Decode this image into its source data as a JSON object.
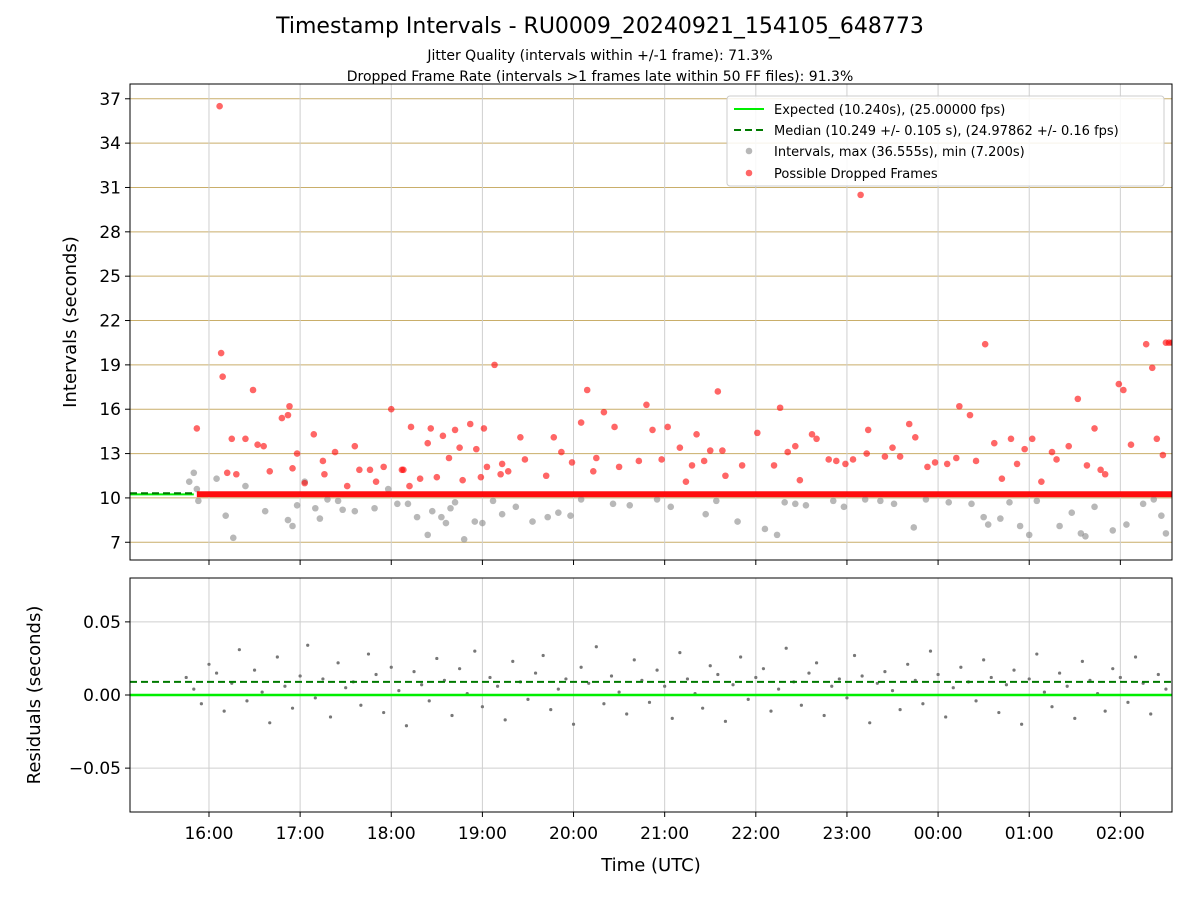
{
  "figure": {
    "title": "Timestamp Intervals - RU0009_20240921_154105_648773",
    "subtitle_jitter": "Jitter Quality (intervals within +/-1 frame): 71.3%",
    "subtitle_dropped": "Dropped Frame Rate (intervals >1 frames late within 50 FF files): 91.3%"
  },
  "chart_data": [
    {
      "type": "scatter",
      "ylabel": "Intervals (seconds)",
      "ylim": [
        5.8,
        38.0
      ],
      "yticks": [
        7,
        10,
        13,
        16,
        19,
        22,
        25,
        28,
        31,
        34,
        37
      ],
      "xlim": [
        "15:08",
        "02:34"
      ],
      "grid": true,
      "legend_position": "top-right",
      "reference_lines": [
        {
          "label": "Expected (10.240s), (25.00000 fps)",
          "value": 10.24,
          "style": "solid",
          "color": "#00ee00"
        },
        {
          "label": "Median (10.249 +/- 0.105 s), (24.97862 +/- 0.16 fps)",
          "value": 10.249,
          "style": "dashed",
          "color": "#007a00"
        }
      ],
      "series": [
        {
          "name": "Intervals, max (36.555s), min (7.200s)",
          "color": "#888888",
          "x": [
            "15:47",
            "15:50",
            "15:52",
            "15:53",
            "16:05",
            "16:11",
            "16:16",
            "16:24",
            "16:37",
            "16:52",
            "16:55",
            "16:58",
            "17:03",
            "17:10",
            "17:13",
            "17:18",
            "17:25",
            "17:28",
            "17:36",
            "17:49",
            "17:58",
            "18:04",
            "18:11",
            "18:17",
            "18:24",
            "18:27",
            "18:33",
            "18:36",
            "18:39",
            "18:42",
            "18:48",
            "18:55",
            "19:00",
            "19:07",
            "19:13",
            "19:22",
            "19:33",
            "19:43",
            "19:50",
            "19:58",
            "20:05",
            "20:26",
            "20:37",
            "20:55",
            "21:04",
            "21:27",
            "21:34",
            "21:48",
            "22:06",
            "22:14",
            "22:19",
            "22:26",
            "22:33",
            "22:51",
            "22:58",
            "23:12",
            "23:22",
            "23:31",
            "23:44",
            "23:52",
            "00:07",
            "00:22",
            "00:30",
            "00:33",
            "00:41",
            "00:47",
            "00:54",
            "01:00",
            "01:05",
            "01:20",
            "01:28",
            "01:34",
            "01:37",
            "01:43",
            "01:55",
            "02:04",
            "02:15",
            "02:22",
            "02:27",
            "02:30"
          ],
          "y": [
            11.1,
            11.7,
            10.6,
            9.8,
            11.3,
            8.8,
            7.3,
            10.8,
            9.1,
            8.5,
            8.1,
            9.5,
            11.1,
            9.3,
            8.6,
            9.9,
            9.8,
            9.2,
            9.1,
            9.3,
            10.6,
            9.6,
            9.6,
            8.7,
            7.5,
            9.1,
            8.7,
            8.3,
            9.3,
            9.7,
            7.2,
            8.4,
            8.3,
            9.8,
            8.9,
            9.4,
            8.4,
            8.7,
            9.0,
            8.8,
            9.9,
            9.6,
            9.5,
            9.9,
            9.4,
            8.9,
            9.8,
            8.4,
            7.9,
            7.5,
            9.7,
            9.6,
            9.5,
            9.8,
            9.4,
            9.9,
            9.8,
            9.6,
            8.0,
            9.9,
            9.7,
            9.6,
            8.7,
            8.2,
            8.6,
            9.7,
            8.1,
            7.5,
            9.8,
            8.1,
            9.0,
            7.6,
            7.4,
            9.4,
            7.8,
            8.2,
            9.6,
            9.9,
            8.8,
            7.6
          ]
        },
        {
          "name": "Possible Dropped Frames",
          "color": "#ff0000",
          "x": [
            "15:52",
            "16:07",
            "16:08",
            "16:09",
            "16:12",
            "16:15",
            "16:18",
            "16:24",
            "16:29",
            "16:32",
            "16:36",
            "16:40",
            "16:48",
            "16:52",
            "16:53",
            "16:55",
            "16:58",
            "17:03",
            "17:09",
            "17:15",
            "17:16",
            "17:23",
            "17:31",
            "17:36",
            "17:39",
            "17:46",
            "17:50",
            "17:55",
            "18:00",
            "18:07",
            "18:08",
            "18:12",
            "18:13",
            "18:19",
            "18:24",
            "18:26",
            "18:30",
            "18:34",
            "18:38",
            "18:42",
            "18:45",
            "18:47",
            "18:52",
            "18:56",
            "18:59",
            "19:01",
            "19:03",
            "19:08",
            "19:12",
            "19:13",
            "19:17",
            "19:25",
            "19:28",
            "19:42",
            "19:47",
            "19:52",
            "19:59",
            "20:05",
            "20:09",
            "20:13",
            "20:15",
            "20:20",
            "20:27",
            "20:30",
            "20:43",
            "20:48",
            "20:52",
            "20:58",
            "21:02",
            "21:10",
            "21:14",
            "21:18",
            "21:21",
            "21:26",
            "21:30",
            "21:35",
            "21:38",
            "21:40",
            "21:51",
            "22:01",
            "22:12",
            "22:16",
            "22:21",
            "22:26",
            "22:29",
            "22:37",
            "22:40",
            "22:48",
            "22:53",
            "22:59",
            "23:04",
            "23:09",
            "23:13",
            "23:14",
            "23:25",
            "23:30",
            "23:35",
            "23:41",
            "23:45",
            "23:53",
            "23:58",
            "00:06",
            "00:12",
            "00:14",
            "00:21",
            "00:25",
            "00:31",
            "00:37",
            "00:42",
            "00:48",
            "00:52",
            "00:57",
            "01:02",
            "01:08",
            "01:15",
            "01:18",
            "01:26",
            "01:32",
            "01:38",
            "01:43",
            "01:47",
            "01:50",
            "01:59",
            "02:02",
            "02:07",
            "02:17",
            "02:21",
            "02:24",
            "02:28",
            "02:30",
            "02:32",
            "02:34"
          ],
          "y": [
            14.7,
            36.5,
            19.8,
            18.2,
            11.7,
            14.0,
            11.6,
            14.0,
            17.3,
            13.6,
            13.5,
            11.8,
            15.4,
            15.6,
            16.2,
            12.0,
            13.0,
            11.0,
            14.3,
            12.5,
            11.6,
            13.1,
            10.8,
            13.5,
            11.9,
            11.9,
            11.1,
            12.1,
            16.0,
            11.9,
            11.9,
            10.8,
            14.8,
            11.3,
            13.7,
            14.7,
            11.4,
            14.2,
            12.7,
            14.6,
            13.4,
            11.2,
            15.0,
            13.3,
            11.4,
            14.7,
            12.1,
            19.0,
            11.6,
            12.3,
            11.8,
            14.1,
            12.6,
            11.5,
            14.1,
            13.1,
            12.4,
            15.1,
            17.3,
            11.8,
            12.7,
            15.8,
            14.8,
            12.1,
            12.5,
            16.3,
            14.6,
            12.6,
            14.8,
            13.4,
            11.1,
            12.2,
            14.3,
            12.5,
            13.2,
            17.2,
            13.2,
            11.5,
            12.2,
            14.4,
            12.2,
            16.1,
            13.1,
            13.5,
            11.2,
            14.3,
            14.0,
            12.6,
            12.5,
            12.3,
            12.6,
            30.5,
            13.0,
            14.6,
            12.8,
            13.4,
            12.8,
            15.0,
            14.1,
            12.1,
            12.4,
            12.3,
            12.7,
            16.2,
            15.6,
            12.5,
            20.4,
            13.7,
            11.3,
            14.0,
            12.3,
            13.3,
            14.0,
            11.1,
            13.1,
            12.6,
            13.5,
            16.7,
            12.2,
            14.7,
            11.9,
            11.6,
            17.7,
            17.3,
            13.6,
            20.4,
            18.8,
            14.0,
            12.9,
            20.5,
            20.5,
            20.5
          ]
        }
      ]
    },
    {
      "type": "scatter",
      "ylabel": "Residuals (seconds)",
      "xlabel": "Time (UTC)",
      "ylim": [
        -0.08,
        0.08
      ],
      "yticks": [
        -0.05,
        0.0,
        0.05
      ],
      "ytick_labels": [
        "−0.05",
        "0.00",
        "0.05"
      ],
      "xlim": [
        "15:08",
        "02:34"
      ],
      "xtick_labels": [
        "16:00",
        "17:00",
        "18:00",
        "19:00",
        "20:00",
        "21:00",
        "22:00",
        "23:00",
        "00:00",
        "01:00",
        "02:00"
      ],
      "grid": true,
      "reference_lines": [
        {
          "value": 0.0,
          "style": "solid",
          "color": "#00ee00"
        },
        {
          "value": 0.009,
          "style": "dashed",
          "color": "#007a00"
        }
      ],
      "series": [
        {
          "color": "#777777",
          "x": [
            "15:45",
            "15:50",
            "15:55",
            "16:00",
            "16:05",
            "16:10",
            "16:15",
            "16:20",
            "16:25",
            "16:30",
            "16:35",
            "16:40",
            "16:45",
            "16:50",
            "16:55",
            "17:00",
            "17:05",
            "17:10",
            "17:15",
            "17:20",
            "17:25",
            "17:30",
            "17:35",
            "17:40",
            "17:45",
            "17:50",
            "17:55",
            "18:00",
            "18:05",
            "18:10",
            "18:15",
            "18:20",
            "18:25",
            "18:30",
            "18:35",
            "18:40",
            "18:45",
            "18:50",
            "18:55",
            "19:00",
            "19:05",
            "19:10",
            "19:15",
            "19:20",
            "19:25",
            "19:30",
            "19:35",
            "19:40",
            "19:45",
            "19:50",
            "19:55",
            "20:00",
            "20:05",
            "20:10",
            "20:15",
            "20:20",
            "20:25",
            "20:30",
            "20:35",
            "20:40",
            "20:45",
            "20:50",
            "20:55",
            "21:00",
            "21:05",
            "21:10",
            "21:15",
            "21:20",
            "21:25",
            "21:30",
            "21:35",
            "21:40",
            "21:45",
            "21:50",
            "21:55",
            "22:00",
            "22:05",
            "22:10",
            "22:15",
            "22:20",
            "22:25",
            "22:30",
            "22:35",
            "22:40",
            "22:45",
            "22:50",
            "22:55",
            "23:00",
            "23:05",
            "23:10",
            "23:15",
            "23:20",
            "23:25",
            "23:30",
            "23:35",
            "23:40",
            "23:45",
            "23:50",
            "23:55",
            "00:00",
            "00:05",
            "00:10",
            "00:15",
            "00:20",
            "00:25",
            "00:30",
            "00:35",
            "00:40",
            "00:45",
            "00:50",
            "00:55",
            "01:00",
            "01:05",
            "01:10",
            "01:15",
            "01:20",
            "01:25",
            "01:30",
            "01:35",
            "01:40",
            "01:45",
            "01:50",
            "01:55",
            "02:00",
            "02:05",
            "02:10",
            "02:15",
            "02:20",
            "02:25",
            "02:30"
          ],
          "y": [
            0.012,
            0.004,
            -0.006,
            0.021,
            0.015,
            -0.011,
            0.008,
            0.031,
            -0.004,
            0.017,
            0.002,
            -0.019,
            0.026,
            0.006,
            -0.009,
            0.013,
            0.034,
            -0.002,
            0.011,
            -0.015,
            0.022,
            0.005,
            0.009,
            -0.007,
            0.028,
            0.014,
            -0.012,
            0.019,
            0.003,
            -0.021,
            0.016,
            0.007,
            -0.004,
            0.025,
            0.01,
            -0.014,
            0.018,
            0.001,
            0.03,
            -0.008,
            0.012,
            0.006,
            -0.017,
            0.023,
            0.009,
            -0.003,
            0.015,
            0.027,
            -0.01,
            0.004,
            0.011,
            -0.02,
            0.019,
            0.008,
            0.033,
            -0.006,
            0.013,
            0.002,
            -0.013,
            0.024,
            0.01,
            -0.005,
            0.017,
            0.006,
            -0.016,
            0.029,
            0.011,
            0.001,
            -0.009,
            0.02,
            0.014,
            -0.018,
            0.007,
            0.026,
            -0.003,
            0.012,
            0.018,
            -0.011,
            0.004,
            0.032,
            0.009,
            -0.007,
            0.015,
            0.022,
            -0.014,
            0.006,
            0.011,
            -0.002,
            0.027,
            0.013,
            -0.019,
            0.008,
            0.016,
            0.003,
            -0.01,
            0.021,
            0.01,
            -0.006,
            0.03,
            0.014,
            -0.015,
            0.005,
            0.019,
            0.009,
            -0.004,
            0.024,
            0.012,
            -0.012,
            0.007,
            0.017,
            -0.02,
            0.011,
            0.028,
            0.002,
            -0.008,
            0.015,
            0.006,
            -0.016,
            0.023,
            0.01,
            0.001,
            -0.011,
            0.018,
            0.012,
            -0.005,
            0.026,
            0.008,
            -0.013,
            0.014,
            0.004
          ]
        }
      ]
    }
  ]
}
